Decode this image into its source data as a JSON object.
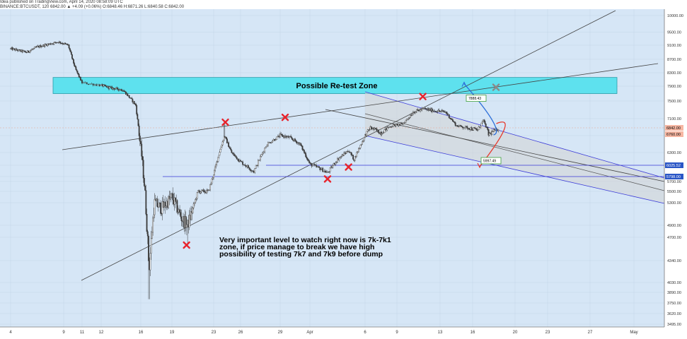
{
  "header": {
    "line1": "Idea published on TradingView.com, April 14, 2020 08:58:09 UTC",
    "line2": "BINANCE:BTCUSDT, 120  6842.00  ▲ +4.09 (+0.06%)  O:6848.46  H:6871.26  L:6840.58  C:6842.00"
  },
  "colors": {
    "background": "#d6e6f6",
    "candle": "#3a3a3a",
    "zone_fill": "#5ee1ee",
    "channel_fill": "#d3d3d3",
    "channel_line": "#3a3ad8",
    "cross": "#e8232c",
    "arrow_up": "#2d6fd9",
    "arrow_down": "#e63b2e",
    "trend_line": "#444444"
  },
  "chart_data": {
    "type": "candlestick",
    "symbol": "BTCUSDT",
    "exchange": "BINANCE",
    "interval": "120",
    "ylim": [
      3400,
      10200
    ],
    "x_ticks": [
      "4",
      "9",
      "11",
      "12",
      "16",
      "19",
      "23",
      "26",
      "29",
      "Apr",
      "6",
      "9",
      "13",
      "16",
      "20",
      "23",
      "27",
      "May"
    ],
    "y_ticks": [
      "10000.00",
      "9500.00",
      "9100.00",
      "8700.00",
      "8300.00",
      "7900.00",
      "7500.00",
      "7100.00",
      "6700.00",
      "6300.00",
      "6025.52",
      "5798.00",
      "5700.00",
      "5500.00",
      "5300.00",
      "4900.00",
      "4700.00",
      "4340.00",
      "4030.00",
      "3890.00",
      "3750.00",
      "3620.00",
      "3495.00"
    ],
    "price_labels": [
      {
        "text": "6842.00",
        "value": 6842,
        "color": "#f7b7a3"
      },
      {
        "text": "6760.00",
        "value": 6760,
        "color": "#f7b7a3"
      },
      {
        "text": "6025.52",
        "value": 6025.52,
        "color": "#2a56c6"
      },
      {
        "text": "5798.00",
        "value": 5798,
        "color": "#2a56c6"
      }
    ],
    "zone": {
      "label": "Possible Re-test Zone",
      "low": 7700,
      "high": 8160
    },
    "levels": [
      6025.52,
      5798
    ],
    "targets": [
      {
        "text": "7888.43",
        "value": 7888.43
      },
      {
        "text": "5997.49",
        "value": 5997.49
      }
    ],
    "annotation": [
      "Very important level to watch right now is 7k-7k1",
      "zone, if price manage to break we have high",
      "possibility of testing 7k7 and 7k9 before dump"
    ],
    "cross_markers": [
      {
        "day": 16.4,
        "value": 4580
      },
      {
        "day": 20.3,
        "value": 7000
      },
      {
        "day": 25.5,
        "value": 7130
      },
      {
        "day": 29.6,
        "value": 5750
      },
      {
        "day": 31.5,
        "value": 5990
      },
      {
        "day": 38.4,
        "value": 7620
      },
      {
        "day": 45.2,
        "value": 7870
      }
    ],
    "anchors": [
      {
        "day": 0,
        "value": 9000
      },
      {
        "day": 1.5,
        "value": 8900
      },
      {
        "day": 2.5,
        "value": 9050
      },
      {
        "day": 4.5,
        "value": 9200
      },
      {
        "day": 5.5,
        "value": 9100
      },
      {
        "day": 6.3,
        "value": 8400
      },
      {
        "day": 7,
        "value": 8000
      },
      {
        "day": 9,
        "value": 7850
      },
      {
        "day": 10.2,
        "value": 7800
      },
      {
        "day": 11.5,
        "value": 7400
      },
      {
        "day": 12.1,
        "value": 6200
      },
      {
        "day": 12.4,
        "value": 5500
      },
      {
        "day": 12.8,
        "value": 4200
      },
      {
        "day": 13.3,
        "value": 5300
      },
      {
        "day": 14,
        "value": 5200
      },
      {
        "day": 15,
        "value": 5400
      },
      {
        "day": 16,
        "value": 5000
      },
      {
        "day": 16.5,
        "value": 4900
      },
      {
        "day": 17.5,
        "value": 5500
      },
      {
        "day": 18.5,
        "value": 5500
      },
      {
        "day": 19.5,
        "value": 6200
      },
      {
        "day": 20.2,
        "value": 6700
      },
      {
        "day": 21,
        "value": 6300
      },
      {
        "day": 22,
        "value": 6100
      },
      {
        "day": 23,
        "value": 5900
      },
      {
        "day": 24,
        "value": 6500
      },
      {
        "day": 25,
        "value": 6700
      },
      {
        "day": 26,
        "value": 6650
      },
      {
        "day": 27,
        "value": 6500
      },
      {
        "day": 28,
        "value": 6050
      },
      {
        "day": 29,
        "value": 5950
      },
      {
        "day": 29.6,
        "value": 5870
      },
      {
        "day": 30.5,
        "value": 6150
      },
      {
        "day": 31.5,
        "value": 6350
      },
      {
        "day": 32,
        "value": 6150
      },
      {
        "day": 33,
        "value": 6700
      },
      {
        "day": 33.5,
        "value": 6850
      },
      {
        "day": 34.5,
        "value": 6750
      },
      {
        "day": 35.5,
        "value": 6900
      },
      {
        "day": 36.5,
        "value": 6950
      },
      {
        "day": 37.5,
        "value": 7250
      },
      {
        "day": 38.5,
        "value": 7320
      },
      {
        "day": 39.5,
        "value": 7280
      },
      {
        "day": 40.5,
        "value": 7250
      },
      {
        "day": 41,
        "value": 7100
      },
      {
        "day": 41.5,
        "value": 6900
      },
      {
        "day": 42.5,
        "value": 6850
      },
      {
        "day": 43.5,
        "value": 6800
      },
      {
        "day": 44,
        "value": 7050
      },
      {
        "day": 44.5,
        "value": 6720
      },
      {
        "day": 45.5,
        "value": 6842
      }
    ]
  }
}
